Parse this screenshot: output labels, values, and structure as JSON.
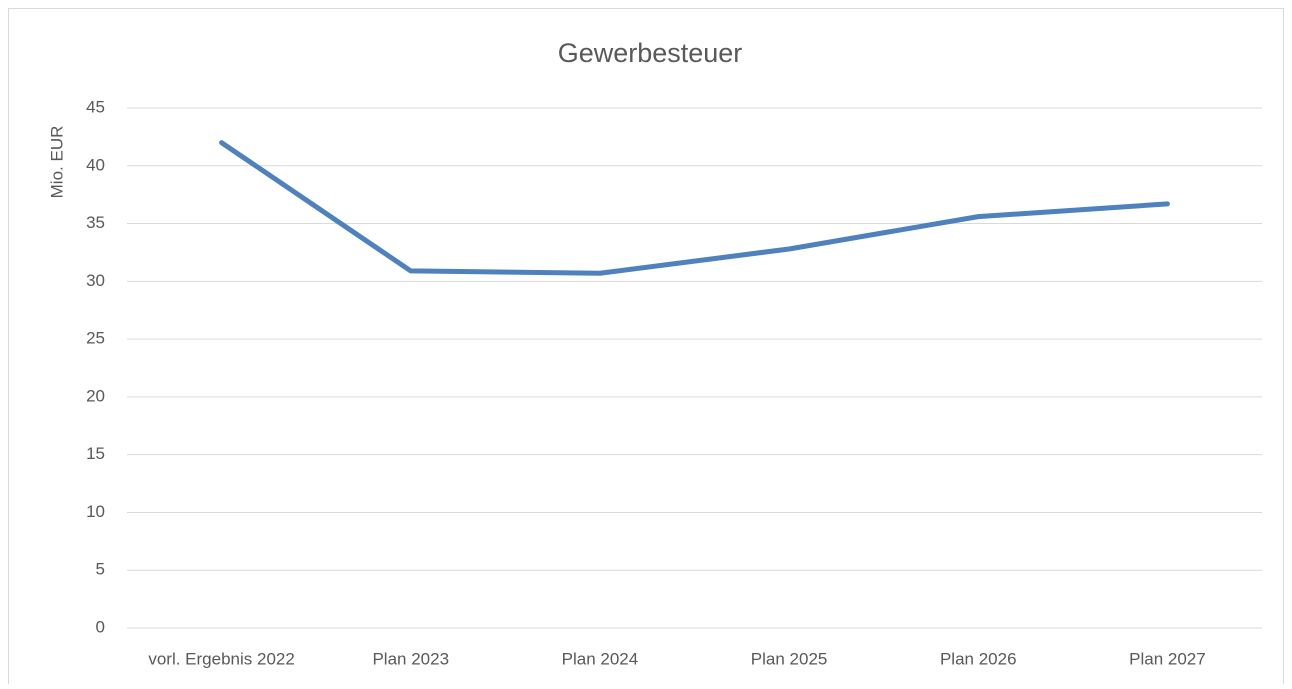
{
  "chart_data": {
    "type": "line",
    "title": "Gewerbesteuer",
    "y_label": "Mio. EUR",
    "categories": [
      "vorl. Ergebnis 2022",
      "Plan 2023",
      "Plan 2024",
      "Plan 2025",
      "Plan 2026",
      "Plan 2027"
    ],
    "series": [
      {
        "name": "Gewerbesteuer",
        "color": "#4f81bd",
        "values": [
          42.0,
          30.9,
          30.7,
          32.8,
          35.6,
          36.7
        ]
      }
    ],
    "ylim": [
      0,
      45
    ],
    "yticks": [
      0,
      5,
      10,
      15,
      20,
      25,
      30,
      35,
      40,
      45
    ],
    "grid": true
  }
}
